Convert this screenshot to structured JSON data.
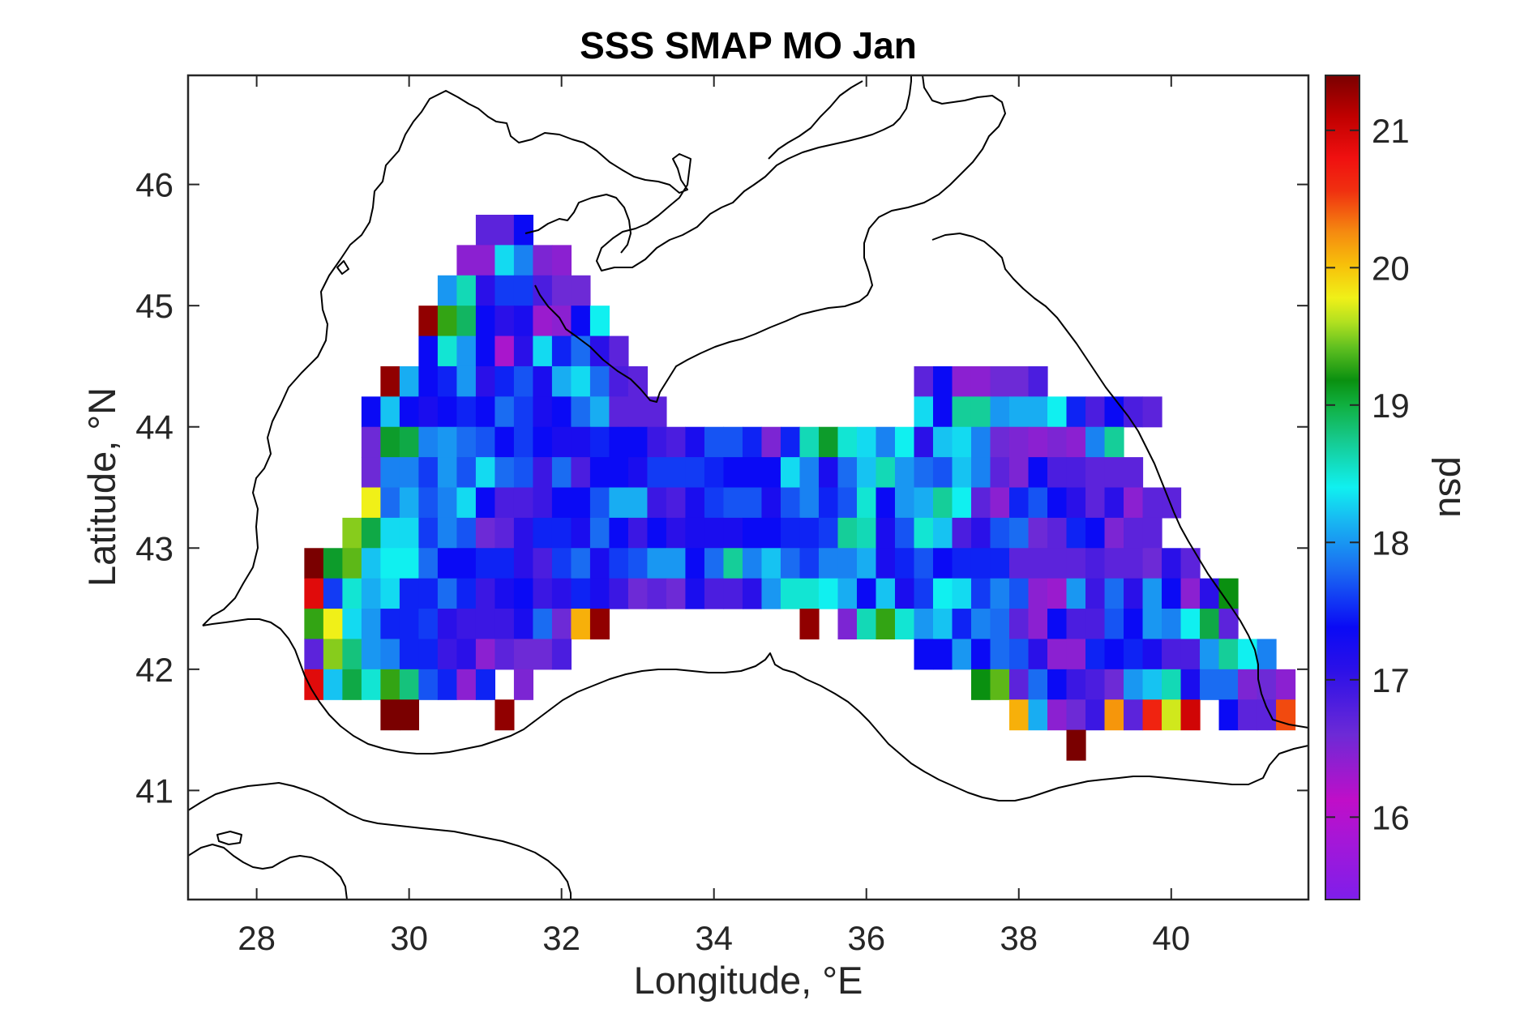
{
  "chart_data": {
    "type": "heatmap",
    "title": "SSS SMAP MO Jan",
    "xlabel": "Longitude, °E",
    "ylabel": "Latitude, °N",
    "colorbar_label": "psu",
    "xlim": [
      27.1,
      41.8
    ],
    "ylim": [
      40.1,
      46.9
    ],
    "xticks": [
      "28",
      "30",
      "32",
      "34",
      "36",
      "38",
      "40"
    ],
    "yticks": [
      "41",
      "42",
      "43",
      "44",
      "45",
      "46"
    ],
    "colorbar_ticks": [
      "16",
      "17",
      "18",
      "19",
      "20",
      "21"
    ],
    "color_range": [
      15.4,
      21.4
    ],
    "colormap": [
      "#7f1eea",
      "#c00ec8",
      "#6d2ad6",
      "#0a0af5",
      "#1a8cf2",
      "#10f0f0",
      "#16c88a",
      "#0aa010",
      "#90d020",
      "#f0f018",
      "#f7b00a",
      "#f55010",
      "#f01010",
      "#c00000",
      "#8a0000"
    ],
    "grid": false,
    "cell_size_deg": 0.25,
    "grid_origin_lon": 28.5,
    "grid_origin_lat": 41.25,
    "grid_rows_south_to_north": [
      "...................2...................................................",
      "....444.2...........................................................4..4..2",
      "....441422.0..................................................",
      "...6555244.3.............................................",
      "...8656855555.2...............................................",
      "...4466666655..........................................................",
      "...66666666666........................................................."
    ]
  },
  "salinity_cells": "see script",
  "map": {
    "region": "Black Sea",
    "coastline": true
  }
}
